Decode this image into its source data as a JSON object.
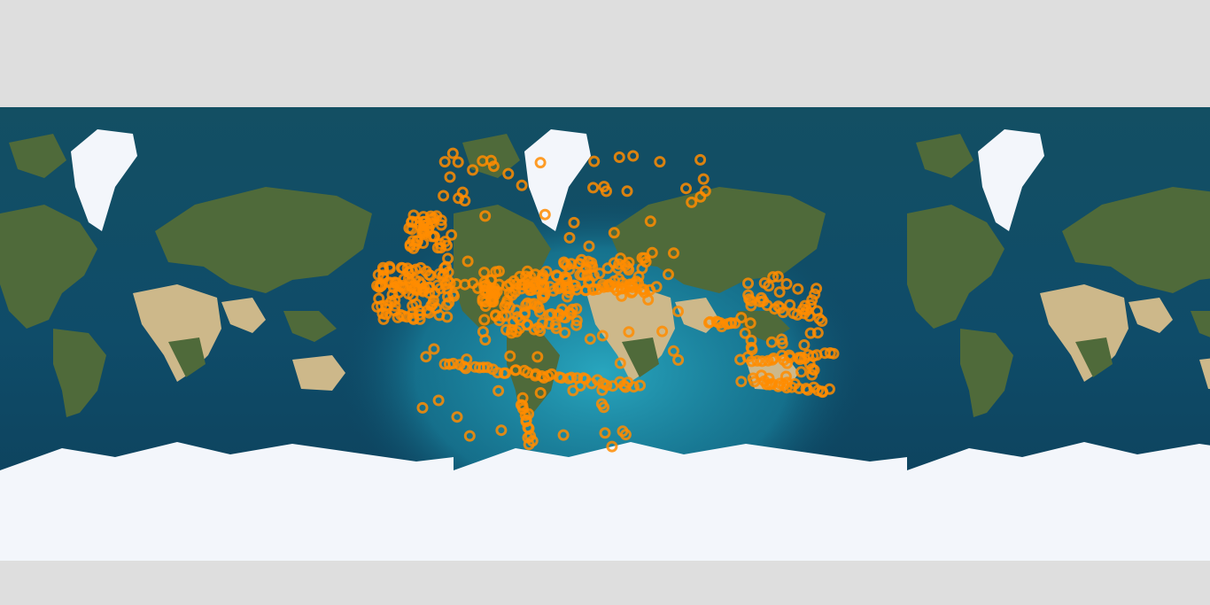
{
  "map": {
    "type": "world-satellite-map",
    "projection": "web-mercator",
    "wraps_horizontally": true,
    "marker_color": "#ff8c00",
    "ocean_color": "#0e4a66",
    "highlight_color": "#1b93ad"
  }
}
